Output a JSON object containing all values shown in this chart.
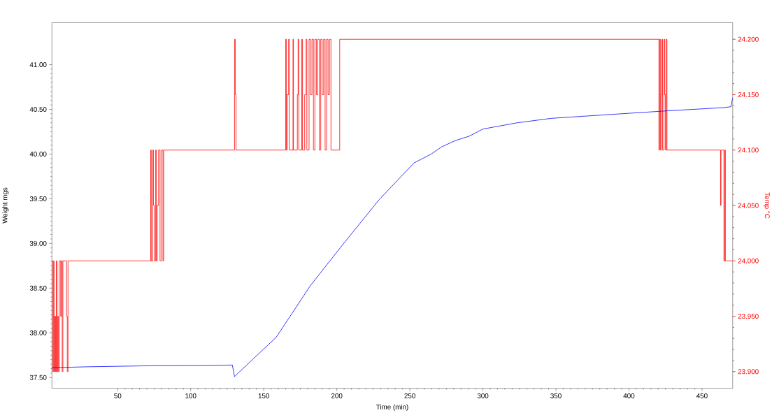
{
  "chart_data": {
    "type": "line",
    "xlabel": "Time (min)",
    "ylabel": "Weight mgs",
    "y2label": "Temp °C",
    "xlim": [
      5,
      471
    ],
    "xticks": [
      50,
      100,
      150,
      200,
      250,
      300,
      350,
      400,
      450
    ],
    "ylim": [
      37.38,
      41.47
    ],
    "yticks": [
      {
        "value": 37.5,
        "label": "37.50"
      },
      {
        "value": 38,
        "label": "38.00"
      },
      {
        "value": 38.5,
        "label": "38.50"
      },
      {
        "value": 39,
        "label": "39.00"
      },
      {
        "value": 39.5,
        "label": "39.50"
      },
      {
        "value": 40,
        "label": "40.00"
      },
      {
        "value": 40.5,
        "label": "40.50"
      },
      {
        "value": 41,
        "label": "41.00"
      }
    ],
    "y2lim": [
      23.885,
      24.215
    ],
    "y2ticks": [
      {
        "value": 23.9,
        "label": "23.900"
      },
      {
        "value": 23.95,
        "label": "23.950"
      },
      {
        "value": 24,
        "label": "24.000"
      },
      {
        "value": 24.05,
        "label": "24.050"
      },
      {
        "value": 24.1,
        "label": "24.100"
      },
      {
        "value": 24.15,
        "label": "24.150"
      },
      {
        "value": 24.2,
        "label": "24.200"
      }
    ],
    "series": [
      {
        "color": "#0000ff",
        "x": [
          5,
          29,
          66,
          113,
          128.5,
          130,
          132.5,
          158.5,
          182,
          205.7,
          229,
          252.8,
          264.6,
          271.7,
          281,
          290.6,
          300,
          323.6,
          347,
          394,
          422.6,
          465,
          469.8,
          471
        ],
        "values": [
          37.61,
          37.62,
          37.63,
          37.635,
          37.64,
          37.51,
          37.55,
          37.95,
          38.53,
          39.02,
          39.49,
          39.9,
          40.0,
          40.08,
          40.15,
          40.2,
          40.28,
          40.35,
          40.4,
          40.45,
          40.48,
          40.52,
          40.53,
          40.63
        ]
      },
      {
        "type": "step",
        "axis": "y2",
        "color": "#ff0000",
        "x": [
          5,
          5.5,
          6,
          6.5,
          7,
          7.5,
          8,
          8.5,
          9,
          9.5,
          10,
          11,
          11.5,
          12,
          12.5,
          15,
          15.5,
          16,
          72.6,
          73,
          74,
          74.5,
          75,
          76,
          76.5,
          77,
          78,
          79,
          80,
          81,
          81.5,
          130,
          130.5,
          131,
          165,
          165.5,
          166,
          167,
          167.5,
          170,
          170.3,
          173,
          173.5,
          174,
          176,
          176.5,
          178,
          179,
          179.5,
          181,
          182,
          183,
          184,
          185,
          186,
          187,
          188,
          189,
          190,
          191,
          192,
          193,
          194,
          195,
          196,
          202,
          420.5,
          421,
          421.5,
          422,
          422.5,
          423,
          424,
          424.5,
          425,
          425.5,
          426,
          462.7,
          463,
          465,
          465.5,
          466,
          471
        ],
        "values": [
          24.0,
          23.9,
          24.0,
          23.9,
          23.95,
          23.9,
          24.0,
          23.9,
          23.95,
          23.9,
          24.0,
          23.95,
          24.0,
          23.9,
          24.0,
          23.95,
          23.9,
          24.0,
          24.1,
          24.0,
          24.1,
          24.05,
          24.0,
          24.1,
          24.0,
          24.05,
          24.1,
          24.0,
          24.1,
          24.0,
          24.1,
          24.2,
          24.15,
          24.1,
          24.2,
          24.1,
          24.15,
          24.2,
          24.1,
          24.2,
          24.1,
          24.15,
          24.2,
          24.1,
          24.2,
          24.1,
          24.15,
          24.2,
          24.1,
          24.2,
          24.15,
          24.2,
          24.1,
          24.2,
          24.15,
          24.2,
          24.1,
          24.2,
          24.15,
          24.2,
          24.1,
          24.2,
          24.15,
          24.2,
          24.1,
          24.2,
          24.1,
          24.2,
          24.1,
          24.15,
          24.2,
          24.1,
          24.2,
          24.15,
          24.1,
          24.2,
          24.1,
          24.05,
          24.1,
          24.0,
          24.1,
          24.0,
          24.0
        ]
      }
    ]
  }
}
